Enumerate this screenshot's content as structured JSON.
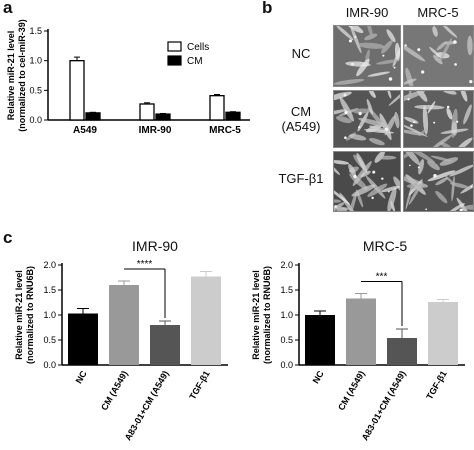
{
  "panel_labels": [
    "a",
    "b",
    "c"
  ],
  "panel_b": {
    "columns": [
      "IMR-90",
      "MRC-5"
    ],
    "rows": [
      {
        "label": "NC"
      },
      {
        "label": "CM\n(A549)"
      },
      {
        "label": "TGF-β1"
      }
    ]
  },
  "chart_data": [
    {
      "type": "bar",
      "panel": "a",
      "ylabel": "Relative miR-21 level\n(normalized to cel-miR-39)",
      "categories": [
        "A549",
        "IMR-90",
        "MRC-5"
      ],
      "yticks": [
        "0.0",
        "0.5",
        "1.0",
        "1.5"
      ],
      "ylim": [
        0,
        1.5
      ],
      "legend": "top-right",
      "series": [
        {
          "name": "Cells",
          "values": [
            1.0,
            0.27,
            0.41
          ],
          "errors": [
            0.06,
            0.02,
            0.02
          ],
          "color": "#ffffff"
        },
        {
          "name": "CM",
          "values": [
            0.12,
            0.1,
            0.13
          ],
          "errors": [
            0.01,
            0.01,
            0.01
          ],
          "color": "#000000"
        }
      ]
    },
    {
      "type": "bar",
      "panel": "c",
      "title": "IMR-90",
      "ylabel": "Relative miR-21 level\n(normalized to RNU6B)",
      "categories": [
        "NC",
        "CM (A549)",
        "A83-01+CM (A549)",
        "TGF-β1"
      ],
      "yticks": [
        "0.0",
        "0.5",
        "1.0",
        "1.5",
        "2.0"
      ],
      "ylim": [
        0,
        2.0
      ],
      "values": [
        1.03,
        1.6,
        0.8,
        1.77
      ],
      "errors": [
        0.1,
        0.08,
        0.08,
        0.1
      ],
      "colors": [
        "#000000",
        "#999999",
        "#555555",
        "#cccccc"
      ],
      "significance": {
        "from": 1,
        "to": 2,
        "label": "****"
      }
    },
    {
      "type": "bar",
      "panel": "c",
      "title": "MRC-5",
      "ylabel": "Relative miR-21 level\n(normalized to RNU6B)",
      "categories": [
        "NC",
        "CM (A549)",
        "A83-01+CM (A549)",
        "TGF-β1"
      ],
      "yticks": [
        "0.0",
        "0.5",
        "1.0",
        "1.5",
        "2.0"
      ],
      "ylim": [
        0,
        2.0
      ],
      "values": [
        1.0,
        1.33,
        0.54,
        1.26
      ],
      "errors": [
        0.08,
        0.1,
        0.18,
        0.05
      ],
      "colors": [
        "#000000",
        "#999999",
        "#555555",
        "#cccccc"
      ],
      "significance": {
        "from": 1,
        "to": 2,
        "label": "***"
      }
    }
  ]
}
